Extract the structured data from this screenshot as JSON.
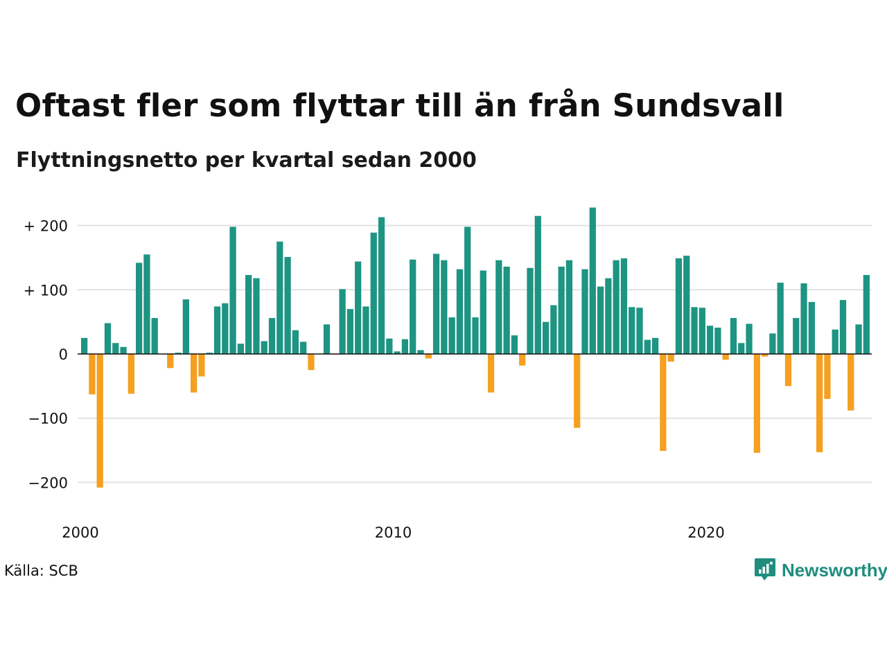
{
  "chart_data": {
    "type": "bar",
    "title": "Oftast fler som flyttar till än från Sundsvall",
    "subtitle": "Flyttningsnetto per kvartal sedan 2000",
    "x_tick_labels": [
      "2000",
      "2010",
      "2020"
    ],
    "y_tick_labels": [
      "+ 200",
      "+ 100",
      "0",
      "−100",
      "−200"
    ],
    "y_ticks": [
      200,
      100,
      0,
      -100,
      -200
    ],
    "ylim": [
      -230,
      235
    ],
    "grid": true,
    "start_year": 2000,
    "colors": {
      "positive": "#1e9482",
      "negative": "#f5a020",
      "grid": "#e2e2e2",
      "zero_line": "#111111"
    },
    "values": [
      25,
      -63,
      -208,
      48,
      17,
      11,
      -62,
      142,
      155,
      56,
      0,
      -22,
      2,
      85,
      -60,
      -35,
      2,
      74,
      79,
      198,
      16,
      123,
      118,
      20,
      56,
      175,
      151,
      37,
      19,
      -25,
      0,
      46,
      -1,
      101,
      70,
      144,
      74,
      189,
      213,
      24,
      4,
      23,
      147,
      6,
      -7,
      156,
      146,
      57,
      132,
      198,
      57,
      130,
      -60,
      146,
      136,
      29,
      -18,
      134,
      215,
      50,
      76,
      136,
      146,
      -115,
      132,
      228,
      105,
      118,
      146,
      149,
      73,
      72,
      22,
      25,
      -151,
      -12,
      149,
      153,
      73,
      72,
      44,
      41,
      -9,
      56,
      17,
      47,
      -154,
      -4,
      32,
      111,
      -50,
      56,
      110,
      81,
      -153,
      -70,
      38,
      84,
      -88,
      46,
      123
    ]
  },
  "source": "Källa: SCB",
  "brand": {
    "name": "Newsworthy",
    "color": "#1e8d7e",
    "icon": "newsworthy-logo-icon"
  }
}
